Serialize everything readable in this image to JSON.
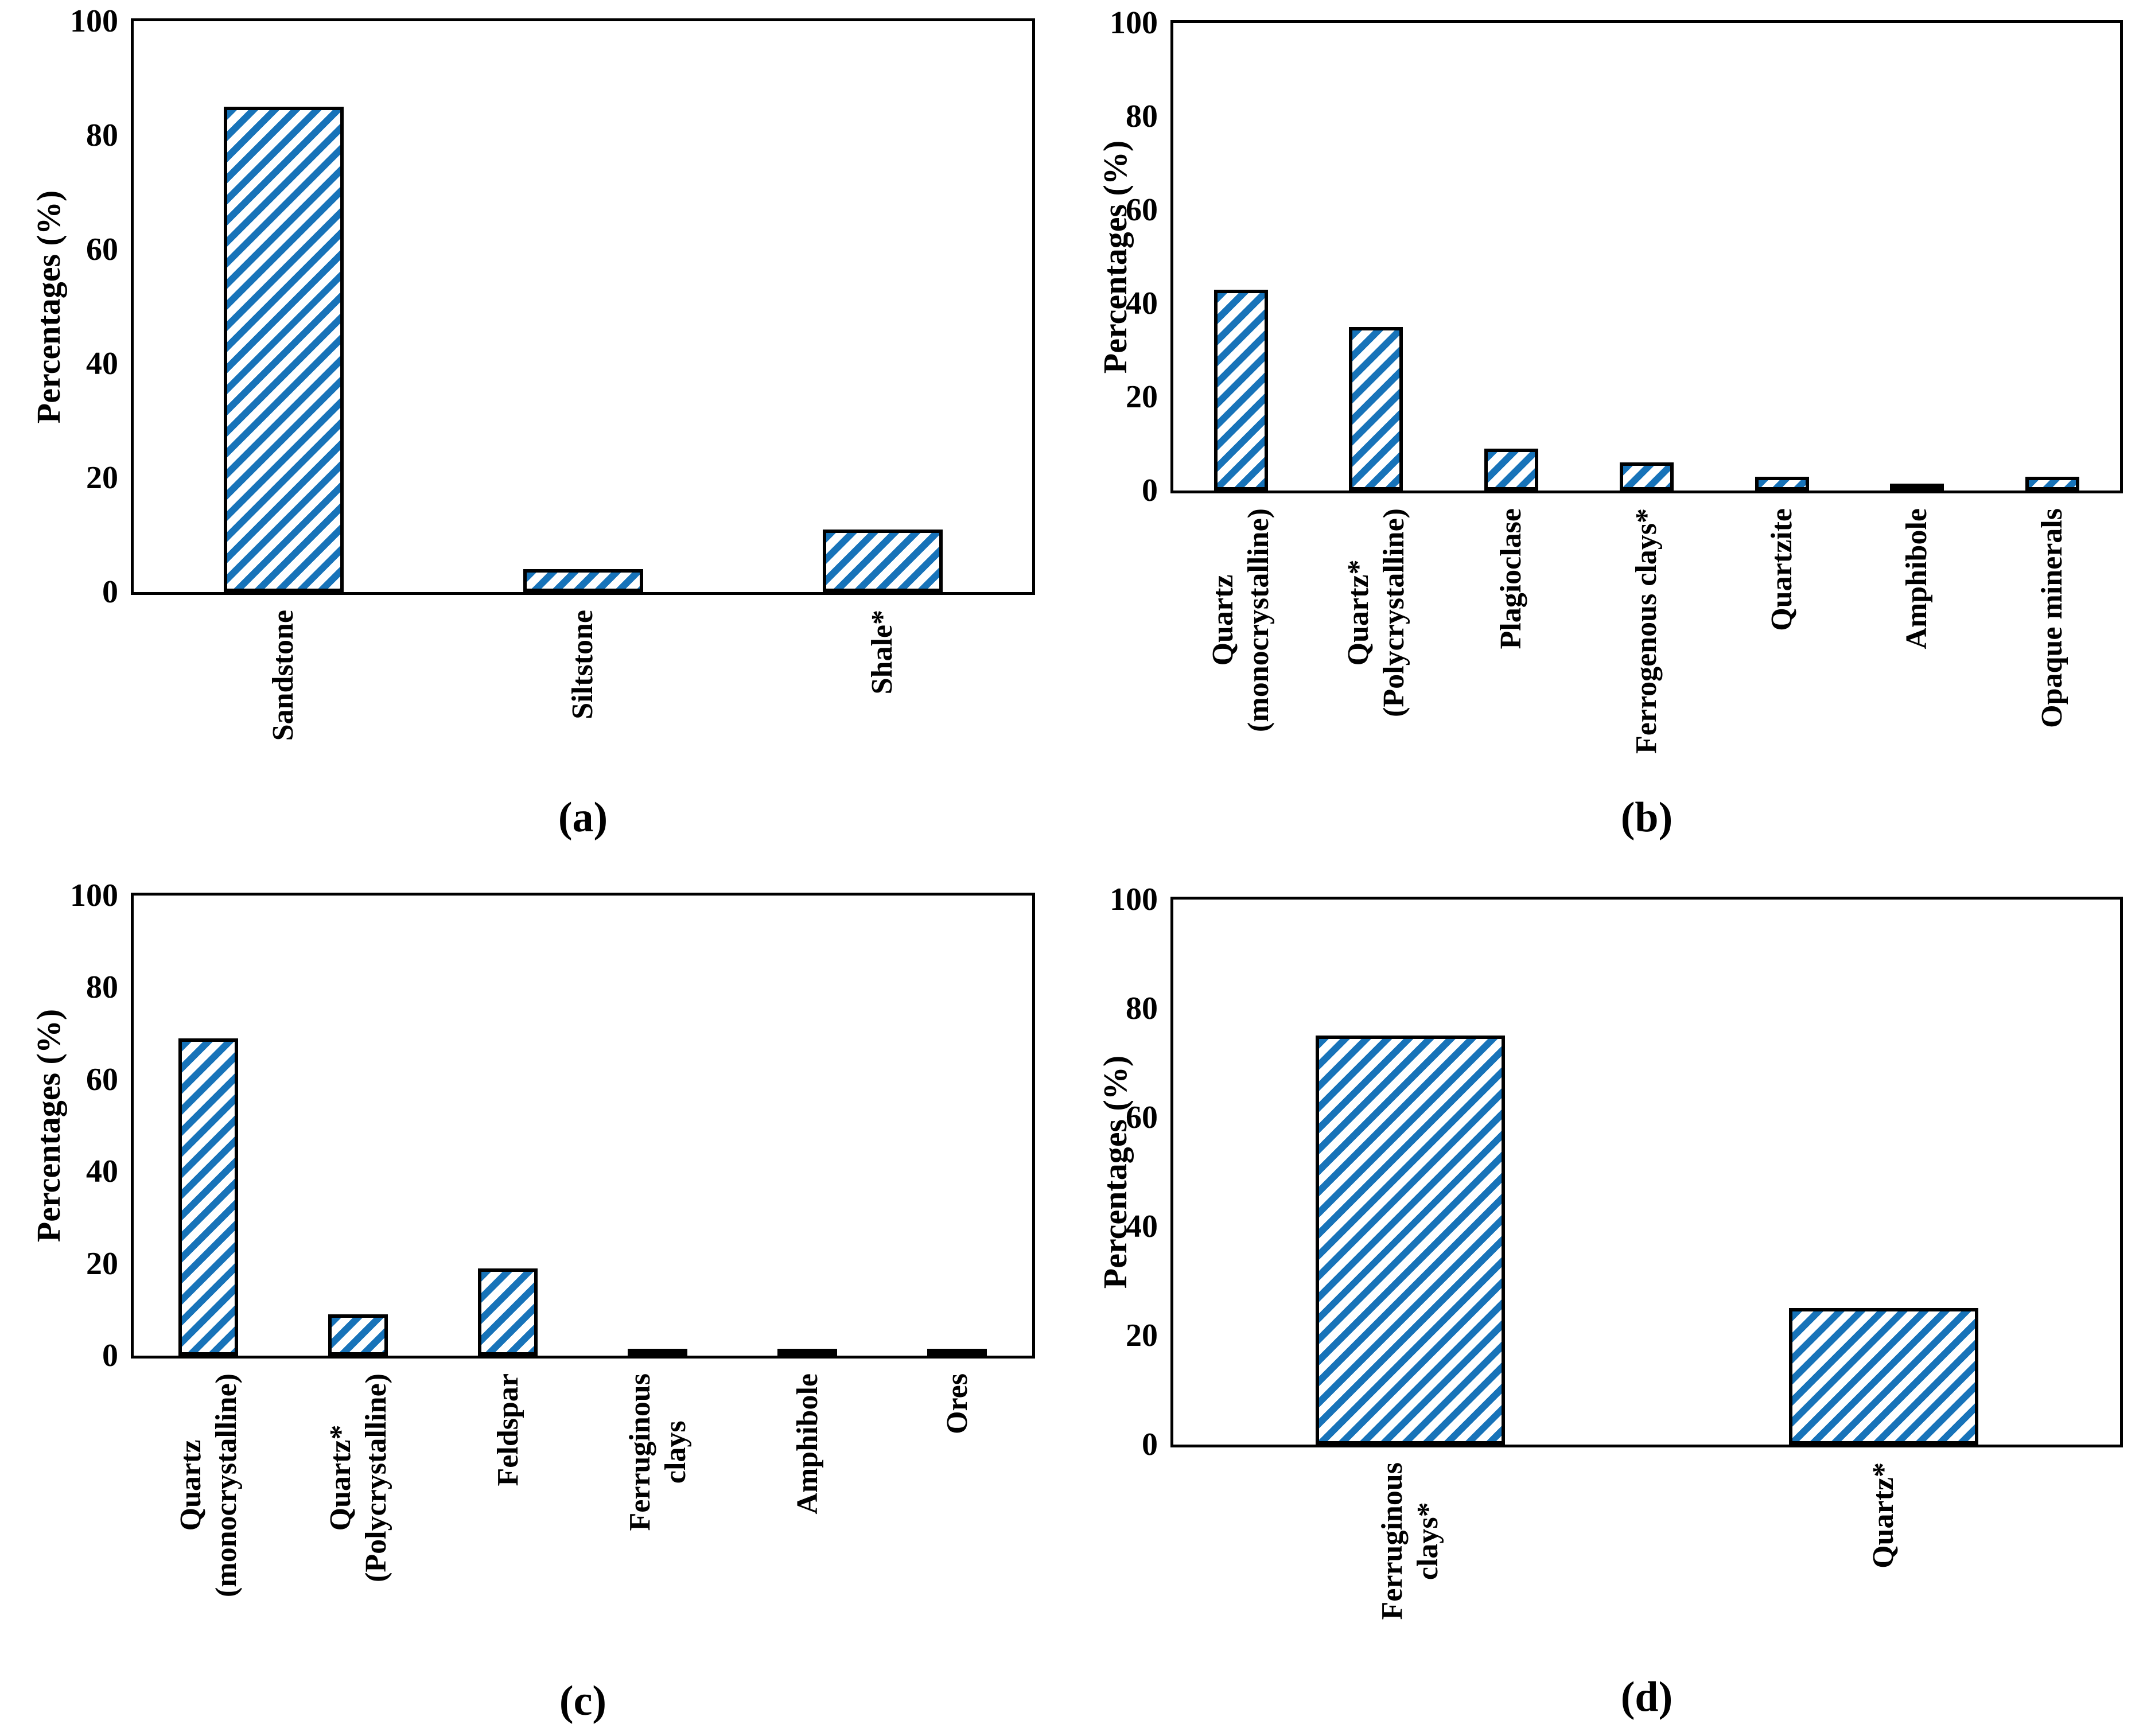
{
  "figure": {
    "style": {
      "hatch_color": "#1773B9",
      "bar_background": "#FFFFFF",
      "axis_color": "#000000",
      "hatch_pattern": "diagonal-stripes"
    }
  },
  "chart_data": [
    {
      "type": "bar",
      "panel": "a",
      "caption": "(a)",
      "title": "",
      "xlabel": "",
      "ylabel": "Percentages (%)",
      "ylim": [
        0,
        100
      ],
      "yticks": [
        0,
        20,
        40,
        60,
        80,
        100
      ],
      "grid": "off",
      "legend": "none",
      "categories": [
        "Sandstone",
        "Siltstone",
        "Shale*"
      ],
      "values": [
        85,
        4,
        11
      ]
    },
    {
      "type": "bar",
      "panel": "b",
      "caption": "(b)",
      "title": "",
      "xlabel": "",
      "ylabel": "Percentages (%)",
      "ylim": [
        0,
        100
      ],
      "yticks": [
        0,
        20,
        40,
        60,
        80,
        100
      ],
      "grid": "off",
      "legend": "none",
      "categories": [
        "Quartz\n(monocrystalline)",
        "Quartz*\n(Polycrystalline)",
        "Plagioclase",
        "Ferrogenous clays*",
        "Quartzite",
        "Amphibole",
        "Opaque minerals"
      ],
      "values": [
        43,
        35,
        9,
        6,
        3,
        1,
        3
      ]
    },
    {
      "type": "bar",
      "panel": "c",
      "caption": "(c)",
      "title": "",
      "xlabel": "",
      "ylabel": "Percentages (%)",
      "ylim": [
        0,
        100
      ],
      "yticks": [
        0,
        20,
        40,
        60,
        80,
        100
      ],
      "grid": "off",
      "legend": "none",
      "categories": [
        "Quartz\n(monocrystalline)",
        "Quartz*\n(Polycrystalline)",
        "Feldspar",
        "Ferruginous\nclays",
        "Amphibole",
        "Ores"
      ],
      "values": [
        69,
        9,
        19,
        1,
        1,
        1
      ]
    },
    {
      "type": "bar",
      "panel": "d",
      "caption": "(d)",
      "title": "",
      "xlabel": "",
      "ylabel": "Percentages (%)",
      "ylim": [
        0,
        100
      ],
      "yticks": [
        0,
        20,
        40,
        60,
        80,
        100
      ],
      "grid": "off",
      "legend": "none",
      "categories": [
        "Ferruginous\nclays*",
        "Quartz*"
      ],
      "values": [
        75,
        25
      ]
    }
  ]
}
